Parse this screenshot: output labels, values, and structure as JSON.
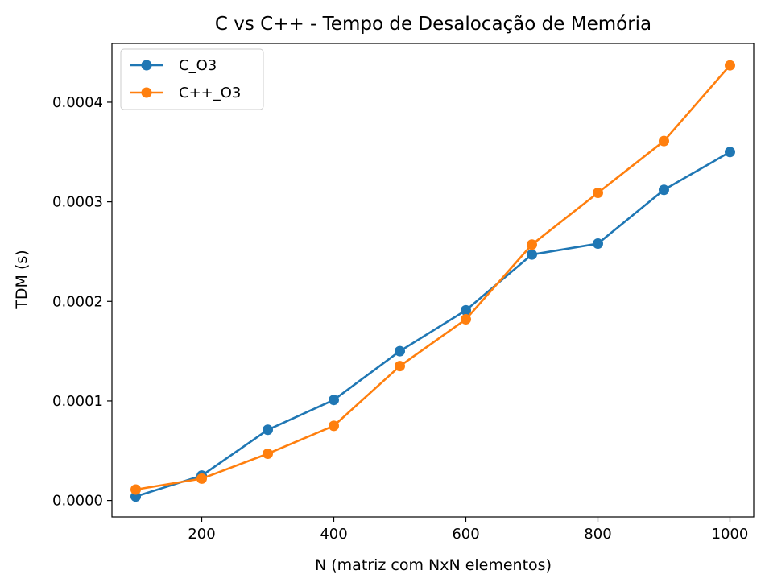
{
  "chart_data": {
    "type": "line",
    "title": "C vs C++ - Tempo de Desalocação de Memória",
    "xlabel": "N (matriz com NxN elementos)",
    "ylabel": "TDM (s)",
    "xlim": [
      64,
      1036
    ],
    "ylim": [
      -1.65e-05,
      0.000459
    ],
    "x_ticks": [
      200,
      400,
      600,
      800,
      1000
    ],
    "x_tick_labels": [
      "200",
      "400",
      "600",
      "800",
      "1000"
    ],
    "y_ticks": [
      0,
      0.0001,
      0.0002,
      0.0003,
      0.0004
    ],
    "y_tick_labels": [
      "0.0000",
      "0.0001",
      "0.0002",
      "0.0003",
      "0.0004"
    ],
    "grid": false,
    "legend_position": "top-left",
    "x": [
      100,
      200,
      300,
      400,
      500,
      600,
      700,
      800,
      900,
      1000
    ],
    "series": [
      {
        "name": "C_O3",
        "color": "#1f77b4",
        "marker": "circle",
        "values": [
          4e-06,
          2.5e-05,
          7.1e-05,
          0.000101,
          0.00015,
          0.000191,
          0.000247,
          0.000258,
          0.000312,
          0.00035
        ]
      },
      {
        "name": "C++_O3",
        "color": "#ff7f0e",
        "marker": "circle",
        "values": [
          1.1e-05,
          2.2e-05,
          4.7e-05,
          7.5e-05,
          0.000135,
          0.000182,
          0.000257,
          0.000309,
          0.000361,
          0.000437
        ]
      }
    ]
  }
}
